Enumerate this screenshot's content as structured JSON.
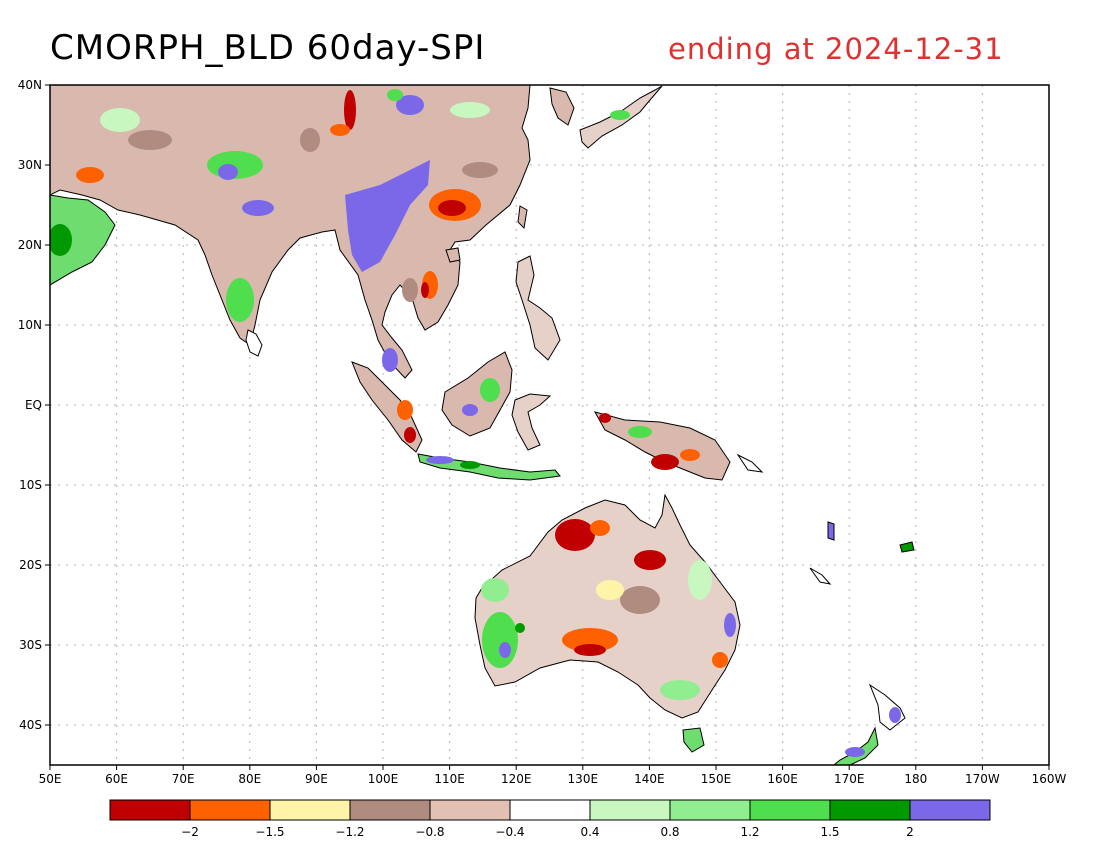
{
  "title": {
    "left": "CMORPH_BLD 60day-SPI",
    "right": "ending at 2024-12-31"
  },
  "colors": {
    "ink": "#000000",
    "grid": "#b0b0b0",
    "title_right": "#e03030",
    "land_outline": "#000000"
  },
  "map": {
    "lat_range": [
      -45,
      40
    ],
    "lon_range_east": [
      50,
      200
    ],
    "lat_labels": [
      "40N",
      "30N",
      "20N",
      "10N",
      "EQ",
      "10S",
      "20S",
      "30S",
      "40S"
    ],
    "lat_values": [
      40,
      30,
      20,
      10,
      0,
      -10,
      -20,
      -30,
      -40
    ],
    "lon_labels": [
      "50E",
      "60E",
      "70E",
      "80E",
      "90E",
      "100E",
      "110E",
      "120E",
      "130E",
      "140E",
      "150E",
      "160E",
      "170E",
      "180",
      "170W",
      "160W"
    ],
    "lon_values": [
      50,
      60,
      70,
      80,
      90,
      100,
      110,
      120,
      130,
      140,
      150,
      160,
      170,
      180,
      190,
      200
    ],
    "gridlines": true
  },
  "colorbar": {
    "colors": [
      "#c00000",
      "#ff6000",
      "#fff4a8",
      "#b08b7f",
      "#e2c0b4",
      "#ffffff",
      "#c8f7c0",
      "#90ee90",
      "#4ede4e",
      "#009900",
      "#7a68e8"
    ],
    "labels": [
      "−2",
      "−1.5",
      "−1.2",
      "−0.8",
      "−0.4",
      "0.4",
      "0.8",
      "1.2",
      "1.5",
      "2"
    ]
  }
}
